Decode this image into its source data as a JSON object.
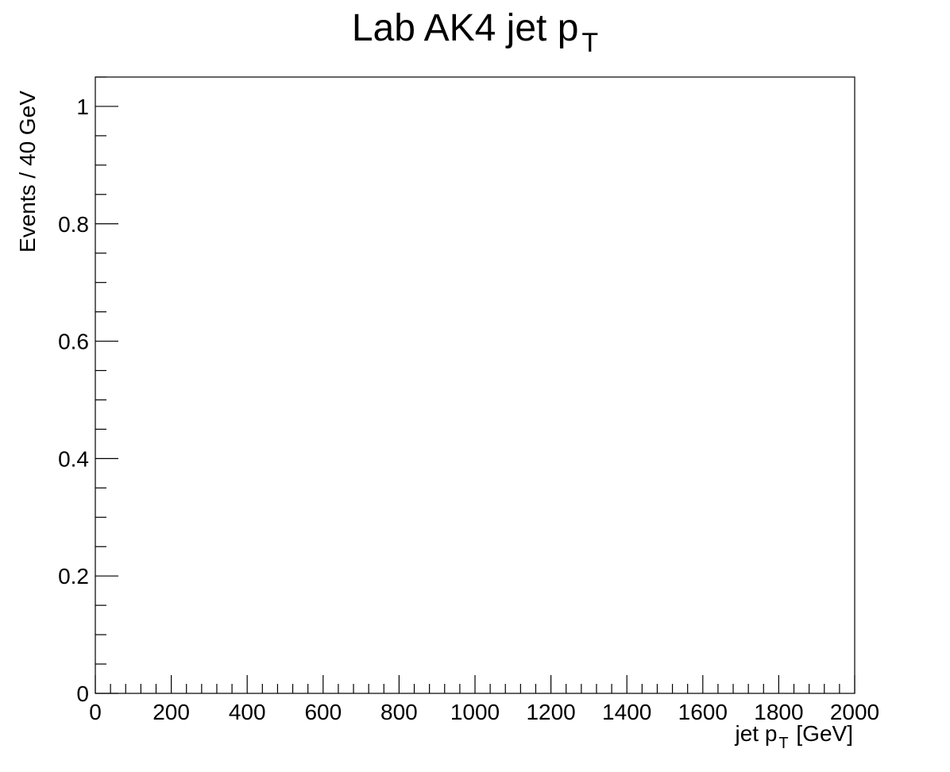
{
  "chart_data": {
    "type": "bar",
    "title": {
      "base": "Lab AK4 jet p",
      "sub": "T"
    },
    "xlabel": {
      "prefix": "jet p",
      "sub": "T",
      "suffix": " [GeV]"
    },
    "ylabel": "Events / 40 GeV",
    "xlim": [
      0,
      2000
    ],
    "ylim": [
      0,
      1.05
    ],
    "x_ticks": [
      "0",
      "200",
      "400",
      "600",
      "800",
      "1000",
      "1200",
      "1400",
      "1600",
      "1800",
      "2000"
    ],
    "y_ticks": [
      "0",
      "0.2",
      "0.4",
      "0.6",
      "0.8",
      "1"
    ],
    "bin_width": 40,
    "grid": false,
    "series": [
      {
        "values": []
      }
    ]
  }
}
